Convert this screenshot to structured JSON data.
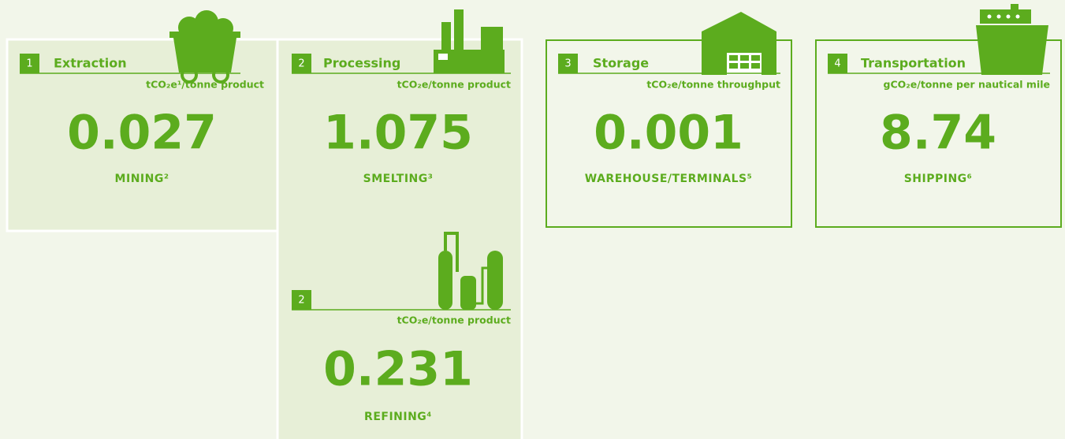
{
  "cards": [
    {
      "number": "1",
      "title": "Extraction",
      "unit": "tCO₂e¹/tonne product",
      "value": "0.027",
      "label": "MINING²"
    },
    {
      "number": "2",
      "title": "Processing",
      "unit": "tCO₂e/tonne product",
      "value": "1.075",
      "label": "SMELTING³"
    },
    {
      "number": "2",
      "unit": "tCO₂e/tonne product",
      "value": "0.231",
      "label": "REFINING⁴"
    },
    {
      "number": "3",
      "title": "Storage",
      "unit": "tCO₂e/tonne throughput",
      "value": "0.001",
      "label": "WAREHOUSE/TERMINALS⁵"
    },
    {
      "number": "4",
      "title": "Transportation",
      "unit": "gCO₂e/tonne per nautical mile",
      "value": "8.74",
      "label": "SHIPPING⁶"
    }
  ]
}
